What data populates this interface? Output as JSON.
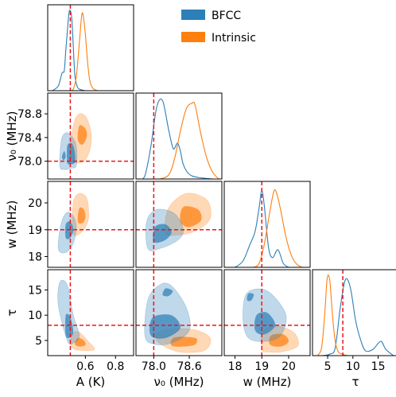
{
  "chart_data": {
    "type": "corner",
    "legend": {
      "placement": "top-center",
      "entries": [
        {
          "label": "BFCC",
          "color": "#2c7fb8"
        },
        {
          "label": "Intrinsic",
          "color": "#ff7f0e"
        }
      ]
    },
    "params": [
      {
        "key": "A",
        "label": "A (K)",
        "range": [
          0.35,
          0.92
        ],
        "ticks": [
          0.6,
          0.8
        ],
        "tick_labels": [
          "0.6",
          "0.8"
        ],
        "truth": 0.5
      },
      {
        "key": "nu0",
        "label": "ν₀ (MHz)",
        "range": [
          77.7,
          79.15
        ],
        "ticks": [
          78.0,
          78.6
        ],
        "tick_labels": [
          "78.0",
          "78.6"
        ],
        "ticks_y": [
          78.0,
          78.4,
          78.8
        ],
        "tick_labels_y": [
          "78.0",
          "78.4",
          "78.8"
        ],
        "truth": 78.0
      },
      {
        "key": "w",
        "label": "w (MHz)",
        "range": [
          17.6,
          20.8
        ],
        "ticks": [
          18,
          19,
          20
        ],
        "tick_labels": [
          "18",
          "19",
          "20"
        ],
        "ticks_y": [
          18,
          19,
          20
        ],
        "tick_labels_y": [
          "18",
          "19",
          "20"
        ],
        "truth": 19.0
      },
      {
        "key": "tau",
        "label": "τ",
        "range": [
          2.0,
          19.0
        ],
        "ticks": [
          5,
          10,
          15
        ],
        "tick_labels": [
          "5",
          "10",
          "15"
        ],
        "ticks_y": [
          5,
          10,
          15
        ],
        "tick_labels_y": [
          "5",
          "10",
          "15"
        ],
        "truth": 8.0
      }
    ],
    "diagonal_curves": {
      "A": {
        "BFCC": {
          "x": [
            0.38,
            0.42,
            0.445,
            0.46,
            0.47,
            0.49,
            0.5,
            0.51,
            0.52,
            0.53,
            0.545,
            0.56,
            0.6
          ],
          "y": [
            0,
            0.06,
            0.22,
            0.25,
            0.5,
            0.95,
            1.0,
            0.9,
            0.55,
            0.2,
            0.06,
            0.02,
            0
          ]
        },
        "Intrinsic": {
          "x": [
            0.5,
            0.52,
            0.54,
            0.56,
            0.575,
            0.585,
            0.6,
            0.615,
            0.63,
            0.65,
            0.68
          ],
          "y": [
            0,
            0.02,
            0.18,
            0.6,
            0.93,
            0.95,
            0.7,
            0.35,
            0.12,
            0.03,
            0
          ]
        }
      },
      "nu0": {
        "BFCC": {
          "x": [
            77.75,
            77.85,
            77.95,
            78.05,
            78.15,
            78.25,
            78.33,
            78.4,
            78.45,
            78.5,
            78.6,
            78.75,
            79.0
          ],
          "y": [
            0,
            0.04,
            0.4,
            0.9,
            0.98,
            0.62,
            0.38,
            0.45,
            0.35,
            0.18,
            0.06,
            0.02,
            0
          ]
        },
        "Intrinsic": {
          "x": [
            78.1,
            78.25,
            78.35,
            78.45,
            78.55,
            78.65,
            78.7,
            78.8,
            78.9,
            79.0,
            79.1
          ],
          "y": [
            0,
            0.05,
            0.25,
            0.6,
            0.88,
            0.95,
            0.92,
            0.55,
            0.25,
            0.08,
            0
          ]
        }
      },
      "w": {
        "BFCC": {
          "x": [
            18.0,
            18.3,
            18.55,
            18.75,
            18.9,
            19.0,
            19.1,
            19.25,
            19.4,
            19.6,
            19.8,
            20.0
          ],
          "y": [
            0,
            0.08,
            0.28,
            0.45,
            0.75,
            0.96,
            0.75,
            0.25,
            0.12,
            0.22,
            0.05,
            0
          ]
        },
        "Intrinsic": {
          "x": [
            18.7,
            18.9,
            19.1,
            19.3,
            19.45,
            19.55,
            19.7,
            19.9,
            20.1,
            20.3,
            20.5
          ],
          "y": [
            0,
            0.05,
            0.3,
            0.7,
            0.95,
            0.93,
            0.72,
            0.38,
            0.15,
            0.04,
            0
          ]
        }
      },
      "tau": {
        "BFCC": {
          "x": [
            4.0,
            5.5,
            6.5,
            7.5,
            8.5,
            9.5,
            10.5,
            11.5,
            12.5,
            14.0,
            15.5,
            16.5,
            18.0
          ],
          "y": [
            0,
            0.02,
            0.1,
            0.6,
            0.95,
            0.85,
            0.45,
            0.2,
            0.06,
            0.08,
            0.18,
            0.08,
            0
          ]
        },
        "Intrinsic": {
          "x": [
            3.0,
            3.8,
            4.4,
            4.9,
            5.4,
            5.9,
            6.4,
            7.0,
            7.8,
            9.0
          ],
          "y": [
            0,
            0.1,
            0.5,
            0.96,
            0.95,
            0.55,
            0.22,
            0.06,
            0.02,
            0
          ]
        }
      }
    },
    "contours": {
      "nu0_vs_A": {
        "BFCC": {
          "outer": [
            [
              0.43,
              77.92
            ],
            [
              0.44,
              78.35
            ],
            [
              0.47,
              78.48
            ],
            [
              0.51,
              78.42
            ],
            [
              0.54,
              78.25
            ],
            [
              0.54,
              77.93
            ],
            [
              0.5,
              77.88
            ],
            [
              0.46,
              77.86
            ]
          ],
          "inner": [
            [
              0.48,
              77.98
            ],
            [
              0.48,
              78.26
            ],
            [
              0.51,
              78.3
            ],
            [
              0.53,
              78.15
            ],
            [
              0.53,
              77.98
            ],
            [
              0.5,
              77.95
            ]
          ],
          "blob": [
            [
              0.445,
              78.08
            ],
            [
              0.46,
              78.17
            ],
            [
              0.47,
              78.08
            ],
            [
              0.455,
              78.02
            ]
          ]
        },
        "Intrinsic": {
          "outer": [
            [
              0.5,
              78.05
            ],
            [
              0.52,
              78.6
            ],
            [
              0.56,
              78.8
            ],
            [
              0.61,
              78.72
            ],
            [
              0.64,
              78.42
            ],
            [
              0.62,
              78.12
            ],
            [
              0.57,
              77.98
            ]
          ],
          "inner": [
            [
              0.55,
              78.36
            ],
            [
              0.56,
              78.6
            ],
            [
              0.6,
              78.55
            ],
            [
              0.61,
              78.42
            ],
            [
              0.58,
              78.28
            ]
          ]
        }
      },
      "w_vs_A": {
        "BFCC": {
          "outer": [
            [
              0.42,
              18.3
            ],
            [
              0.44,
              19.25
            ],
            [
              0.48,
              19.65
            ],
            [
              0.52,
              19.5
            ],
            [
              0.54,
              19.1
            ],
            [
              0.52,
              18.5
            ],
            [
              0.47,
              18.15
            ]
          ],
          "inner": [
            [
              0.47,
              18.7
            ],
            [
              0.47,
              19.2
            ],
            [
              0.5,
              19.3
            ],
            [
              0.52,
              19.0
            ],
            [
              0.5,
              18.7
            ]
          ]
        },
        "Intrinsic": {
          "outer": [
            [
              0.52,
              18.85
            ],
            [
              0.52,
              20.0
            ],
            [
              0.56,
              20.35
            ],
            [
              0.61,
              20.15
            ],
            [
              0.62,
              19.4
            ],
            [
              0.58,
              18.95
            ]
          ],
          "inner": [
            [
              0.55,
              19.3
            ],
            [
              0.56,
              19.8
            ],
            [
              0.59,
              19.75
            ],
            [
              0.6,
              19.45
            ],
            [
              0.58,
              19.25
            ]
          ]
        }
      },
      "tau_vs_A": {
        "BFCC": {
          "outer": [
            [
              0.42,
              12.0
            ],
            [
              0.43,
              16.5
            ],
            [
              0.48,
              16.0
            ],
            [
              0.52,
              10.0
            ],
            [
              0.56,
              6.0
            ],
            [
              0.52,
              4.5
            ],
            [
              0.48,
              5.0
            ]
          ],
          "inner": [
            [
              0.47,
              6.0
            ],
            [
              0.47,
              10.0
            ],
            [
              0.5,
              9.6
            ],
            [
              0.52,
              6.8
            ],
            [
              0.5,
              5.6
            ]
          ]
        },
        "Intrinsic": {
          "outer": [
            [
              0.5,
              4.5
            ],
            [
              0.52,
              6.5
            ],
            [
              0.56,
              6.6
            ],
            [
              0.62,
              4.8
            ],
            [
              0.66,
              3.2
            ],
            [
              0.58,
              3.0
            ],
            [
              0.52,
              3.4
            ]
          ],
          "inner": [
            [
              0.53,
              4.3
            ],
            [
              0.55,
              5.5
            ],
            [
              0.59,
              5.0
            ],
            [
              0.6,
              4.1
            ],
            [
              0.56,
              3.8
            ]
          ]
        }
      },
      "w_vs_nu0": {
        "BFCC": {
          "outer": [
            [
              77.9,
              18.3
            ],
            [
              77.88,
              19.3
            ],
            [
              78.05,
              19.75
            ],
            [
              78.35,
              19.6
            ],
            [
              78.5,
              19.0
            ],
            [
              78.4,
              18.6
            ],
            [
              78.1,
              18.3
            ]
          ],
          "inner": [
            [
              78.0,
              18.55
            ],
            [
              78.02,
              19.1
            ],
            [
              78.2,
              19.2
            ],
            [
              78.3,
              18.9
            ],
            [
              78.18,
              18.6
            ]
          ]
        },
        "Intrinsic": {
          "outer": [
            [
              78.2,
              18.9
            ],
            [
              78.25,
              19.8
            ],
            [
              78.55,
              20.35
            ],
            [
              78.9,
              20.1
            ],
            [
              78.95,
              19.4
            ],
            [
              78.7,
              18.95
            ],
            [
              78.4,
              18.8
            ]
          ],
          "inner": [
            [
              78.45,
              19.3
            ],
            [
              78.5,
              19.85
            ],
            [
              78.75,
              19.75
            ],
            [
              78.8,
              19.35
            ],
            [
              78.6,
              19.1
            ]
          ]
        }
      },
      "tau_vs_nu0": {
        "BFCC": {
          "outer": [
            [
              77.85,
              6.0
            ],
            [
              77.9,
              13.0
            ],
            [
              78.1,
              16.0
            ],
            [
              78.3,
              15.8
            ],
            [
              78.55,
              11.5
            ],
            [
              78.6,
              7.0
            ],
            [
              78.3,
              4.5
            ],
            [
              78.0,
              4.3
            ]
          ],
          "inner": [
            [
              77.95,
              6.0
            ],
            [
              77.98,
              9.5
            ],
            [
              78.3,
              10.0
            ],
            [
              78.45,
              7.5
            ],
            [
              78.2,
              5.5
            ]
          ],
          "blob": [
            [
              78.15,
              14.0
            ],
            [
              78.2,
              15.3
            ],
            [
              78.32,
              14.8
            ],
            [
              78.25,
              13.8
            ]
          ]
        },
        "Intrinsic": {
          "outer": [
            [
              78.05,
              5.0
            ],
            [
              78.15,
              7.0
            ],
            [
              78.65,
              7.2
            ],
            [
              78.95,
              5.5
            ],
            [
              78.85,
              3.0
            ],
            [
              78.4,
              2.8
            ]
          ],
          "inner": [
            [
              78.3,
              4.0
            ],
            [
              78.35,
              5.6
            ],
            [
              78.7,
              5.5
            ],
            [
              78.7,
              4.2
            ],
            [
              78.5,
              3.8
            ]
          ]
        }
      },
      "tau_vs_w": {
        "BFCC": {
          "outer": [
            [
              18.3,
              9.0
            ],
            [
              18.4,
              14.0
            ],
            [
              18.9,
              15.2
            ],
            [
              19.4,
              14.0
            ],
            [
              19.9,
              10.0
            ],
            [
              19.7,
              6.0
            ],
            [
              19.1,
              4.8
            ],
            [
              18.5,
              5.5
            ]
          ],
          "inner": [
            [
              18.75,
              7.0
            ],
            [
              18.8,
              10.0
            ],
            [
              19.2,
              10.5
            ],
            [
              19.5,
              8.0
            ],
            [
              19.1,
              6.2
            ]
          ],
          "blob": [
            [
              18.45,
              13.0
            ],
            [
              18.5,
              14.3
            ],
            [
              18.7,
              14.1
            ],
            [
              18.6,
              12.9
            ]
          ]
        },
        "Intrinsic": {
          "outer": [
            [
              19.0,
              3.2
            ],
            [
              19.05,
              6.8
            ],
            [
              19.6,
              7.8
            ],
            [
              20.2,
              6.5
            ],
            [
              20.35,
              4.0
            ],
            [
              19.8,
              2.8
            ],
            [
              19.3,
              2.7
            ]
          ],
          "inner": [
            [
              19.3,
              4.2
            ],
            [
              19.35,
              6.0
            ],
            [
              19.8,
              6.2
            ],
            [
              20.0,
              4.8
            ],
            [
              19.7,
              3.8
            ]
          ]
        }
      }
    }
  }
}
